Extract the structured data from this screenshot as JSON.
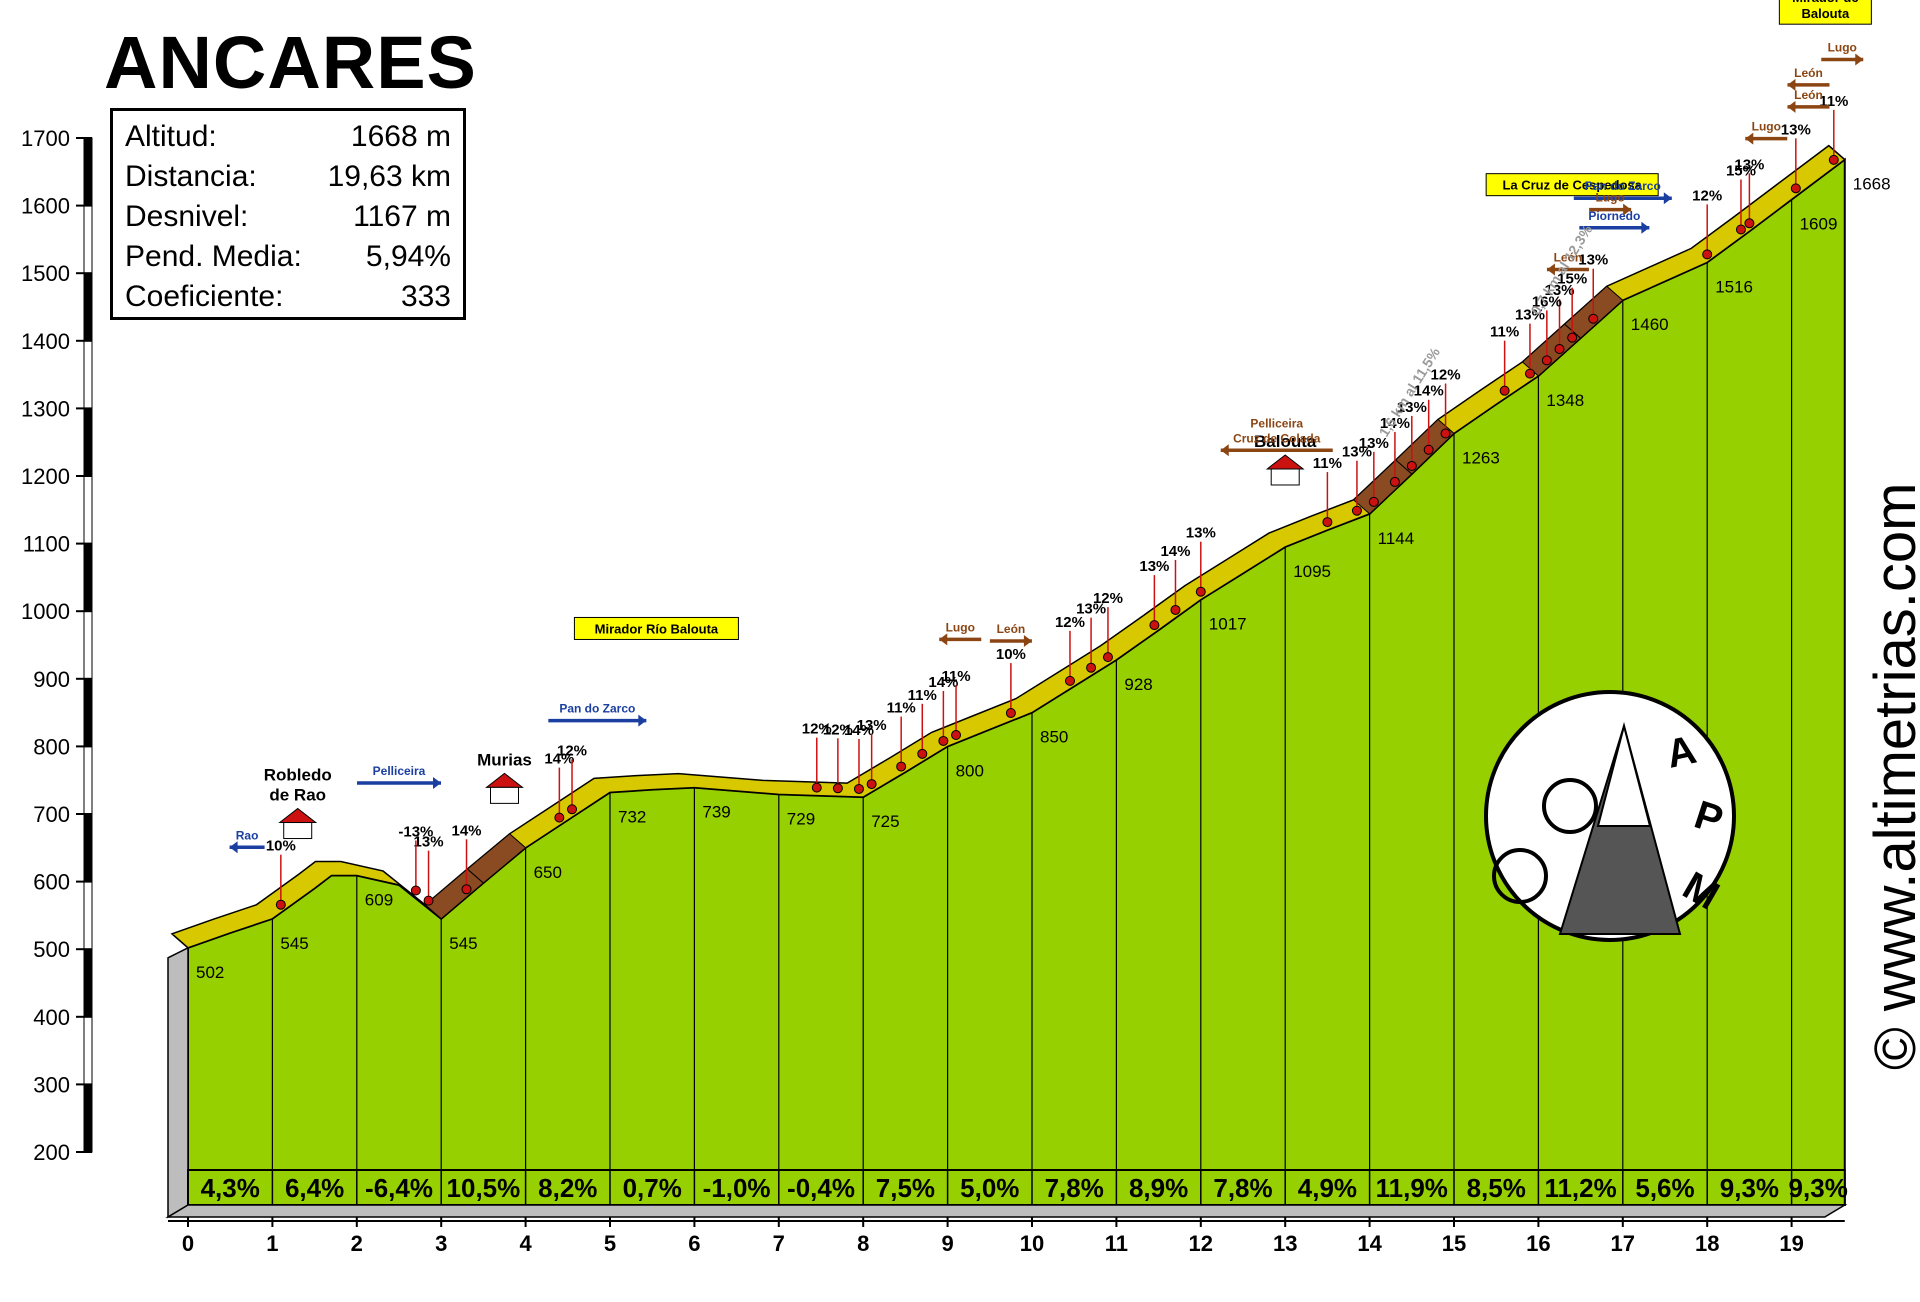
{
  "title": "ANCARES",
  "stats": [
    {
      "label": "Altitud:",
      "value": "1668 m"
    },
    {
      "label": "Distancia:",
      "value": "19,63 km"
    },
    {
      "label": "Desnivel:",
      "value": "1167 m"
    },
    {
      "label": "Pend. Media:",
      "value": "5,94%"
    },
    {
      "label": "Coeficiente:",
      "value": "333"
    }
  ],
  "website": "© www.altimetrias.com",
  "logo": {
    "letters": [
      "A",
      "P",
      "M"
    ]
  },
  "colors": {
    "profile": "#97d000",
    "road": "#d8c800",
    "steep": "#8a4a22",
    "sign_brown": "#8b4513",
    "sign_blue": "#1a3fa0",
    "label_yellow": "#ffff00",
    "marker": "#cc1111"
  },
  "chart_data": {
    "type": "area",
    "title": "ANCARES",
    "xlabel": "",
    "ylabel": "",
    "xlim": [
      0,
      19.63
    ],
    "ylim": [
      200,
      1700
    ],
    "x_ticks": [
      0,
      1,
      2,
      3,
      4,
      5,
      6,
      7,
      8,
      9,
      10,
      11,
      12,
      13,
      14,
      15,
      16,
      17,
      18,
      19
    ],
    "y_ticks": [
      200,
      300,
      400,
      500,
      600,
      700,
      800,
      900,
      1000,
      1100,
      1200,
      1300,
      1400,
      1500,
      1600,
      1700
    ],
    "profile": [
      {
        "x": 0,
        "y": 502
      },
      {
        "x": 0.5,
        "y": 524
      },
      {
        "x": 1,
        "y": 545
      },
      {
        "x": 1.5,
        "y": 590
      },
      {
        "x": 1.7,
        "y": 609
      },
      {
        "x": 2,
        "y": 609
      },
      {
        "x": 2.5,
        "y": 595
      },
      {
        "x": 3,
        "y": 545
      },
      {
        "x": 3.5,
        "y": 598
      },
      {
        "x": 4,
        "y": 650
      },
      {
        "x": 4.5,
        "y": 691
      },
      {
        "x": 5,
        "y": 732
      },
      {
        "x": 5.5,
        "y": 736
      },
      {
        "x": 6,
        "y": 739
      },
      {
        "x": 6.5,
        "y": 734
      },
      {
        "x": 7,
        "y": 729
      },
      {
        "x": 7.5,
        "y": 727
      },
      {
        "x": 8,
        "y": 725
      },
      {
        "x": 8.5,
        "y": 762
      },
      {
        "x": 9,
        "y": 800
      },
      {
        "x": 9.5,
        "y": 825
      },
      {
        "x": 10,
        "y": 850
      },
      {
        "x": 10.5,
        "y": 889
      },
      {
        "x": 11,
        "y": 928
      },
      {
        "x": 11.5,
        "y": 972
      },
      {
        "x": 12,
        "y": 1017
      },
      {
        "x": 12.5,
        "y": 1056
      },
      {
        "x": 13,
        "y": 1095
      },
      {
        "x": 13.5,
        "y": 1120
      },
      {
        "x": 14,
        "y": 1144
      },
      {
        "x": 14.5,
        "y": 1203
      },
      {
        "x": 15,
        "y": 1263
      },
      {
        "x": 15.5,
        "y": 1306
      },
      {
        "x": 16,
        "y": 1348
      },
      {
        "x": 16.5,
        "y": 1404
      },
      {
        "x": 17,
        "y": 1460
      },
      {
        "x": 17.5,
        "y": 1488
      },
      {
        "x": 18,
        "y": 1516
      },
      {
        "x": 18.5,
        "y": 1562
      },
      {
        "x": 19,
        "y": 1609
      },
      {
        "x": 19.63,
        "y": 1668
      }
    ],
    "km_gradients": [
      {
        "km": [
          0,
          1
        ],
        "label": "4,3%"
      },
      {
        "km": [
          1,
          2
        ],
        "label": "6,4%"
      },
      {
        "km": [
          2,
          3
        ],
        "label": "-6,4%"
      },
      {
        "km": [
          3,
          4
        ],
        "label": "10,5%"
      },
      {
        "km": [
          4,
          5
        ],
        "label": "8,2%"
      },
      {
        "km": [
          5,
          6
        ],
        "label": "0,7%"
      },
      {
        "km": [
          6,
          7
        ],
        "label": "-1,0%"
      },
      {
        "km": [
          7,
          8
        ],
        "label": "-0,4%"
      },
      {
        "km": [
          8,
          9
        ],
        "label": "7,5%"
      },
      {
        "km": [
          9,
          10
        ],
        "label": "5,0%"
      },
      {
        "km": [
          10,
          11
        ],
        "label": "7,8%"
      },
      {
        "km": [
          11,
          12
        ],
        "label": "8,9%"
      },
      {
        "km": [
          12,
          13
        ],
        "label": "7,8%"
      },
      {
        "km": [
          13,
          14
        ],
        "label": "4,9%"
      },
      {
        "km": [
          14,
          15
        ],
        "label": "11,9%"
      },
      {
        "km": [
          15,
          16
        ],
        "label": "8,5%"
      },
      {
        "km": [
          16,
          17
        ],
        "label": "11,2%"
      },
      {
        "km": [
          17,
          18
        ],
        "label": "5,6%"
      },
      {
        "km": [
          18,
          19
        ],
        "label": "9,3%"
      },
      {
        "km": [
          19,
          19.63
        ],
        "label": "9,3%"
      }
    ],
    "altitude_labels": [
      {
        "x": 0,
        "y": 502,
        "text": "502"
      },
      {
        "x": 1,
        "y": 545,
        "text": "545"
      },
      {
        "x": 2,
        "y": 609,
        "text": "609"
      },
      {
        "x": 3,
        "y": 545,
        "text": "545"
      },
      {
        "x": 4,
        "y": 650,
        "text": "650"
      },
      {
        "x": 5,
        "y": 732,
        "text": "732"
      },
      {
        "x": 6,
        "y": 739,
        "text": "739"
      },
      {
        "x": 7,
        "y": 729,
        "text": "729"
      },
      {
        "x": 8,
        "y": 725,
        "text": "725"
      },
      {
        "x": 9,
        "y": 800,
        "text": "800"
      },
      {
        "x": 10,
        "y": 850,
        "text": "850"
      },
      {
        "x": 11,
        "y": 928,
        "text": "928"
      },
      {
        "x": 12,
        "y": 1017,
        "text": "1017"
      },
      {
        "x": 13,
        "y": 1095,
        "text": "1095"
      },
      {
        "x": 14,
        "y": 1144,
        "text": "1144"
      },
      {
        "x": 15,
        "y": 1263,
        "text": "1263"
      },
      {
        "x": 16,
        "y": 1348,
        "text": "1348"
      },
      {
        "x": 17,
        "y": 1460,
        "text": "1460"
      },
      {
        "x": 18,
        "y": 1516,
        "text": "1516"
      },
      {
        "x": 19,
        "y": 1609,
        "text": "1609"
      },
      {
        "x": 19.63,
        "y": 1668,
        "text": "1668"
      }
    ],
    "ramp_labels": [
      {
        "x": 1.1,
        "text": "10%"
      },
      {
        "x": 2.85,
        "text": "13%"
      },
      {
        "x": 2.7,
        "text": "-13%"
      },
      {
        "x": 3.3,
        "text": "14%"
      },
      {
        "x": 4.4,
        "text": "14%"
      },
      {
        "x": 4.55,
        "text": "12%"
      },
      {
        "x": 7.45,
        "text": "12%"
      },
      {
        "x": 7.7,
        "text": "12%"
      },
      {
        "x": 7.95,
        "text": "14%"
      },
      {
        "x": 8.1,
        "text": "13%"
      },
      {
        "x": 8.45,
        "text": "11%"
      },
      {
        "x": 8.7,
        "text": "11%"
      },
      {
        "x": 8.95,
        "text": "14%"
      },
      {
        "x": 9.1,
        "text": "11%"
      },
      {
        "x": 9.75,
        "text": "10%"
      },
      {
        "x": 10.45,
        "text": "12%"
      },
      {
        "x": 10.7,
        "text": "13%"
      },
      {
        "x": 10.9,
        "text": "12%"
      },
      {
        "x": 11.45,
        "text": "13%"
      },
      {
        "x": 11.7,
        "text": "14%"
      },
      {
        "x": 12.0,
        "text": "13%"
      },
      {
        "x": 13.5,
        "text": "11%"
      },
      {
        "x": 13.85,
        "text": "13%"
      },
      {
        "x": 14.05,
        "text": "13%"
      },
      {
        "x": 14.3,
        "text": "14%"
      },
      {
        "x": 14.5,
        "text": "13%"
      },
      {
        "x": 14.7,
        "text": "14%"
      },
      {
        "x": 14.9,
        "text": "12%"
      },
      {
        "x": 15.6,
        "text": "11%"
      },
      {
        "x": 15.9,
        "text": "13%"
      },
      {
        "x": 16.25,
        "text": "13%"
      },
      {
        "x": 16.1,
        "text": "16%"
      },
      {
        "x": 16.4,
        "text": "15%"
      },
      {
        "x": 16.65,
        "text": "13%"
      },
      {
        "x": 18.0,
        "text": "12%"
      },
      {
        "x": 18.4,
        "text": "15%"
      },
      {
        "x": 18.5,
        "text": "13%"
      },
      {
        "x": 19.05,
        "text": "13%"
      },
      {
        "x": 19.5,
        "text": "11%"
      }
    ],
    "places": [
      {
        "x": 1.3,
        "text": [
          "Robledo",
          "de Rao"
        ]
      },
      {
        "x": 3.75,
        "text": [
          "Murias"
        ]
      },
      {
        "x": 13.0,
        "text": [
          "Balouta"
        ]
      }
    ],
    "highlight_labels": [
      {
        "x": 5.55,
        "text": "Mirador Río Balouta"
      },
      {
        "x": 16.4,
        "text": "La Cruz de Cespedosa"
      },
      {
        "x": 19.4,
        "text": [
          "Mirador de",
          "Balouta"
        ]
      }
    ],
    "direction_signs": [
      {
        "x": 0.7,
        "text": "Rao",
        "color": "blue",
        "dir": "left"
      },
      {
        "x": 2.5,
        "text": "Pelliceira",
        "color": "blue",
        "dir": "right"
      },
      {
        "x": 4.85,
        "text": "Pan do Zarco",
        "color": "blue",
        "dir": "right"
      },
      {
        "x": 9.15,
        "text": "Lugo",
        "color": "brown",
        "dir": "left"
      },
      {
        "x": 9.75,
        "text": "León",
        "color": "brown",
        "dir": "right"
      },
      {
        "x": 12.9,
        "text": [
          "Pelliceira",
          "Cruz de Colada"
        ],
        "color": "brown",
        "dir": "left"
      },
      {
        "x": 16.9,
        "text": "Piornedo",
        "color": "blue",
        "dir": "right"
      },
      {
        "x": 17.0,
        "text": "Pan do Zarco",
        "color": "blue",
        "dir": "right"
      },
      {
        "x": 16.35,
        "text": "León",
        "color": "brown",
        "dir": "left"
      },
      {
        "x": 16.85,
        "text": "Lugo",
        "color": "brown",
        "dir": "right"
      },
      {
        "x": 18.7,
        "text": "Lugo",
        "color": "brown",
        "dir": "left"
      },
      {
        "x": 19.2,
        "text": "León",
        "color": "brown",
        "dir": "left"
      },
      {
        "x": 19.2,
        "text": "León",
        "color": "brown",
        "dir": "left"
      },
      {
        "x": 19.6,
        "text": "Lugo",
        "color": "brown",
        "dir": "right"
      }
    ],
    "slanted_notes": [
      {
        "x": 14.2,
        "text": "1,6 km al 11,5%"
      },
      {
        "x": 16.0,
        "text": "0,7 km al 12,3%"
      }
    ],
    "grid": false,
    "legend": "none"
  }
}
